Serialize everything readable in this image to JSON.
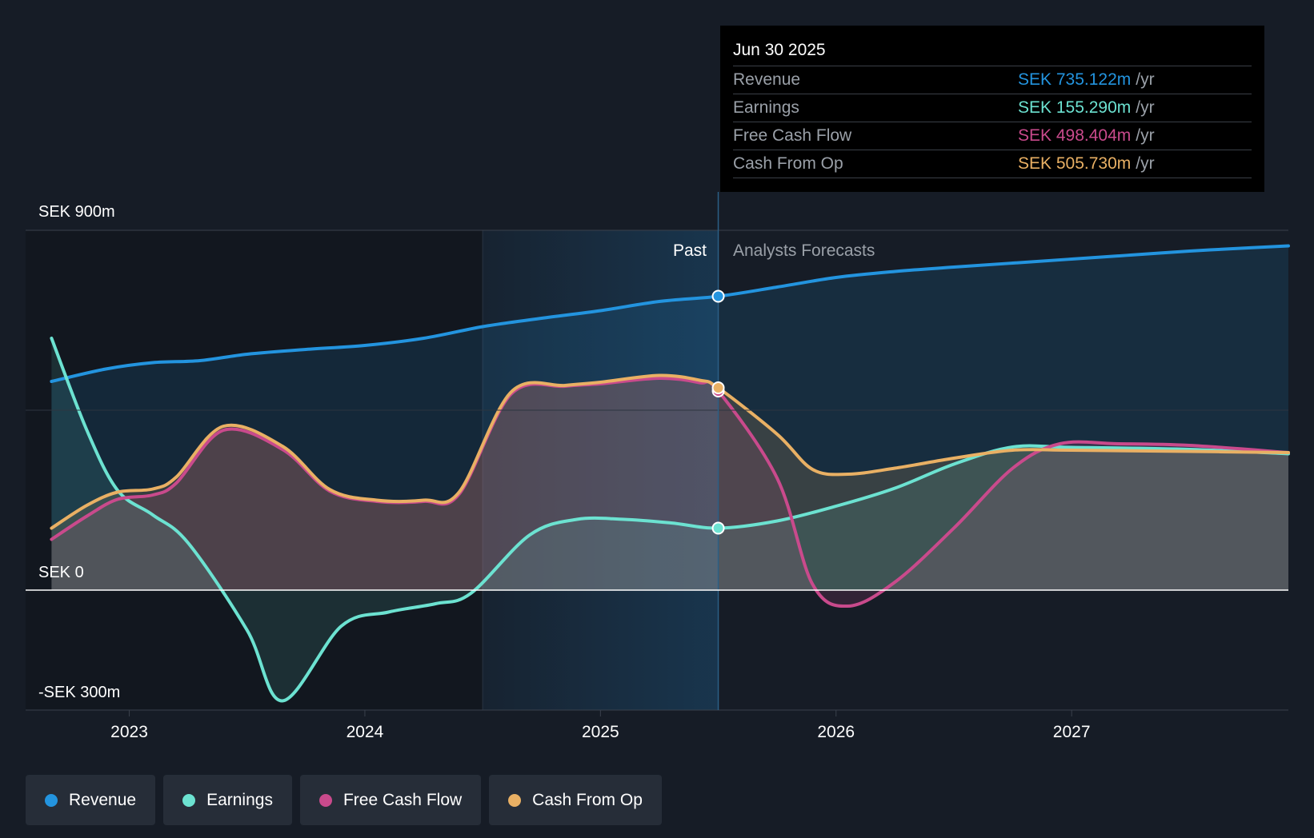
{
  "tooltip": {
    "date": "Jun 30 2025",
    "rows": [
      {
        "label": "Revenue",
        "value": "SEK 735.122m",
        "unit": "/yr",
        "color": "#2394df"
      },
      {
        "label": "Earnings",
        "value": "SEK 155.290m",
        "unit": "/yr",
        "color": "#6ce2d1"
      },
      {
        "label": "Free Cash Flow",
        "value": "SEK 498.404m",
        "unit": "/yr",
        "color": "#c94a8c"
      },
      {
        "label": "Cash From Op",
        "value": "SEK 505.730m",
        "unit": "/yr",
        "color": "#e9b064"
      }
    ]
  },
  "legend": [
    {
      "label": "Revenue",
      "color": "#2394df"
    },
    {
      "label": "Earnings",
      "color": "#6ce2d1"
    },
    {
      "label": "Free Cash Flow",
      "color": "#c94a8c"
    },
    {
      "label": "Cash From Op",
      "color": "#e9b064"
    }
  ],
  "chart_data": {
    "type": "line",
    "y_labels": {
      "top": "SEK 900m",
      "zero": "SEK 0",
      "bottom": "-SEK 300m"
    },
    "ylim": [
      -300,
      900
    ],
    "x_ticks": [
      {
        "label": "2023",
        "x": 2023.0
      },
      {
        "label": "2024",
        "x": 2024.0
      },
      {
        "label": "2025",
        "x": 2025.0
      },
      {
        "label": "2026",
        "x": 2026.0
      },
      {
        "label": "2027",
        "x": 2027.0
      }
    ],
    "xlim": [
      2022.56,
      2027.92
    ],
    "past_label": "Past",
    "forecast_label": "Analysts Forecasts",
    "divider_x": 2025.5,
    "shade_start_x": 2024.5,
    "grid": true,
    "series": [
      {
        "name": "Revenue",
        "color": "#2394df",
        "area": true,
        "points": [
          [
            2022.67,
            522
          ],
          [
            2022.9,
            553
          ],
          [
            2023.1,
            569
          ],
          [
            2023.3,
            574
          ],
          [
            2023.5,
            590
          ],
          [
            2023.75,
            602
          ],
          [
            2024.0,
            612
          ],
          [
            2024.25,
            630
          ],
          [
            2024.5,
            659
          ],
          [
            2024.75,
            680
          ],
          [
            2025.0,
            699
          ],
          [
            2025.25,
            722
          ],
          [
            2025.5,
            735
          ],
          [
            2025.75,
            758
          ],
          [
            2026.0,
            782
          ],
          [
            2026.25,
            797
          ],
          [
            2026.5,
            808
          ],
          [
            2026.75,
            818
          ],
          [
            2027.0,
            828
          ],
          [
            2027.25,
            838
          ],
          [
            2027.5,
            848
          ],
          [
            2027.75,
            856
          ],
          [
            2027.92,
            861
          ]
        ]
      },
      {
        "name": "Earnings",
        "color": "#6ce2d1",
        "area": false,
        "points": [
          [
            2022.67,
            630
          ],
          [
            2022.82,
            400
          ],
          [
            2022.95,
            250
          ],
          [
            2023.1,
            188
          ],
          [
            2023.25,
            118
          ],
          [
            2023.5,
            -100
          ],
          [
            2023.65,
            -277
          ],
          [
            2023.9,
            -90
          ],
          [
            2024.1,
            -55
          ],
          [
            2024.3,
            -34
          ],
          [
            2024.45,
            -8
          ],
          [
            2024.7,
            138
          ],
          [
            2024.9,
            177
          ],
          [
            2025.1,
            177
          ],
          [
            2025.3,
            168
          ],
          [
            2025.5,
            155
          ],
          [
            2025.75,
            173
          ],
          [
            2026.0,
            210
          ],
          [
            2026.25,
            255
          ],
          [
            2026.5,
            315
          ],
          [
            2026.75,
            358
          ],
          [
            2027.0,
            357
          ],
          [
            2027.5,
            352
          ],
          [
            2027.92,
            341
          ]
        ]
      },
      {
        "name": "Free Cash Flow",
        "color": "#c94a8c",
        "area": true,
        "points": [
          [
            2022.67,
            127
          ],
          [
            2022.82,
            185
          ],
          [
            2022.95,
            227
          ],
          [
            2023.1,
            238
          ],
          [
            2023.2,
            268
          ],
          [
            2023.4,
            400
          ],
          [
            2023.65,
            352
          ],
          [
            2023.85,
            248
          ],
          [
            2024.05,
            222
          ],
          [
            2024.25,
            222
          ],
          [
            2024.4,
            240
          ],
          [
            2024.62,
            490
          ],
          [
            2024.85,
            510
          ],
          [
            2025.0,
            516
          ],
          [
            2025.25,
            530
          ],
          [
            2025.42,
            519
          ],
          [
            2025.5,
            498
          ],
          [
            2025.75,
            280
          ],
          [
            2025.9,
            15
          ],
          [
            2026.05,
            -40
          ],
          [
            2026.25,
            20
          ],
          [
            2026.5,
            155
          ],
          [
            2026.75,
            305
          ],
          [
            2026.95,
            366
          ],
          [
            2027.2,
            366
          ],
          [
            2027.5,
            362
          ],
          [
            2027.92,
            344
          ]
        ]
      },
      {
        "name": "Cash From Op",
        "color": "#e9b064",
        "area": true,
        "points": [
          [
            2022.67,
            155
          ],
          [
            2022.82,
            212
          ],
          [
            2022.95,
            245
          ],
          [
            2023.1,
            253
          ],
          [
            2023.2,
            283
          ],
          [
            2023.4,
            410
          ],
          [
            2023.65,
            360
          ],
          [
            2023.85,
            252
          ],
          [
            2024.05,
            225
          ],
          [
            2024.25,
            225
          ],
          [
            2024.4,
            245
          ],
          [
            2024.62,
            495
          ],
          [
            2024.85,
            512
          ],
          [
            2025.0,
            520
          ],
          [
            2025.25,
            537
          ],
          [
            2025.42,
            525
          ],
          [
            2025.5,
            506
          ],
          [
            2025.75,
            390
          ],
          [
            2025.9,
            302
          ],
          [
            2026.05,
            290
          ],
          [
            2026.25,
            305
          ],
          [
            2026.5,
            330
          ],
          [
            2026.75,
            350
          ],
          [
            2027.0,
            350
          ],
          [
            2027.5,
            347
          ],
          [
            2027.92,
            344
          ]
        ]
      }
    ]
  }
}
